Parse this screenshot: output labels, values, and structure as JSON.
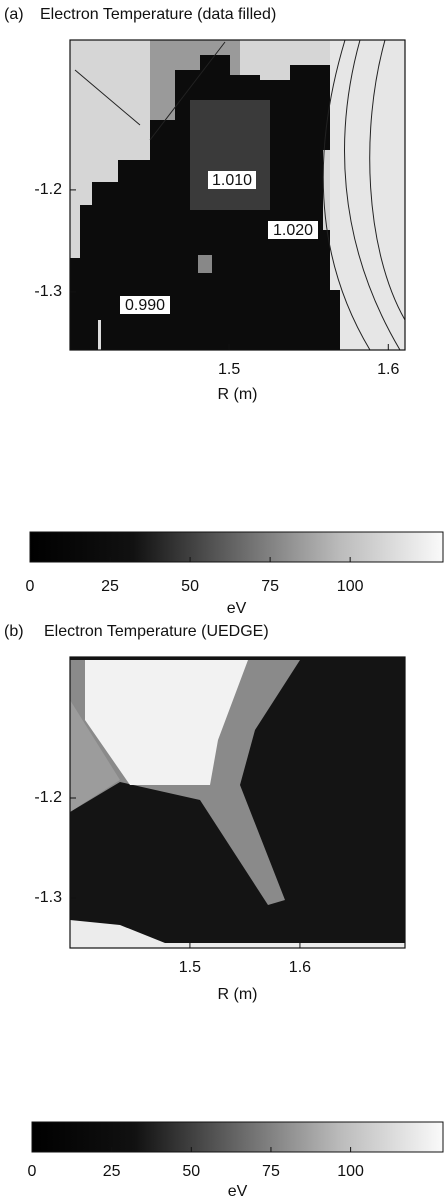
{
  "chart_data": [
    {
      "type": "heatmap",
      "panel_label": "(a)",
      "title": "Electron Temperature (data filled)",
      "xlabel": "R (m)",
      "xlim": [
        1.4,
        1.6105
      ],
      "ylim": [
        -1.357,
        -1.053
      ],
      "xticks": [
        1.5,
        1.6
      ],
      "yticks": [
        -1.2,
        -1.3
      ],
      "contour_labels": [
        "1.010",
        "1.020",
        "0.990"
      ],
      "colorbar": {
        "label": "eV",
        "lim": [
          0,
          129
        ],
        "ticks": [
          0,
          25,
          50,
          75,
          100
        ]
      }
    },
    {
      "type": "heatmap",
      "panel_label": "(b)",
      "title": "Electron Temperature (UEDGE)",
      "xlabel": "R (m)",
      "xlim": [
        1.391,
        1.6955
      ],
      "ylim": [
        -1.35,
        -1.059
      ],
      "xticks": [
        1.5,
        1.6
      ],
      "yticks": [
        -1.2,
        -1.3
      ],
      "colorbar": {
        "label": "eV",
        "lim": [
          0,
          129
        ],
        "ticks": [
          0,
          25,
          50,
          75,
          100
        ]
      }
    }
  ]
}
